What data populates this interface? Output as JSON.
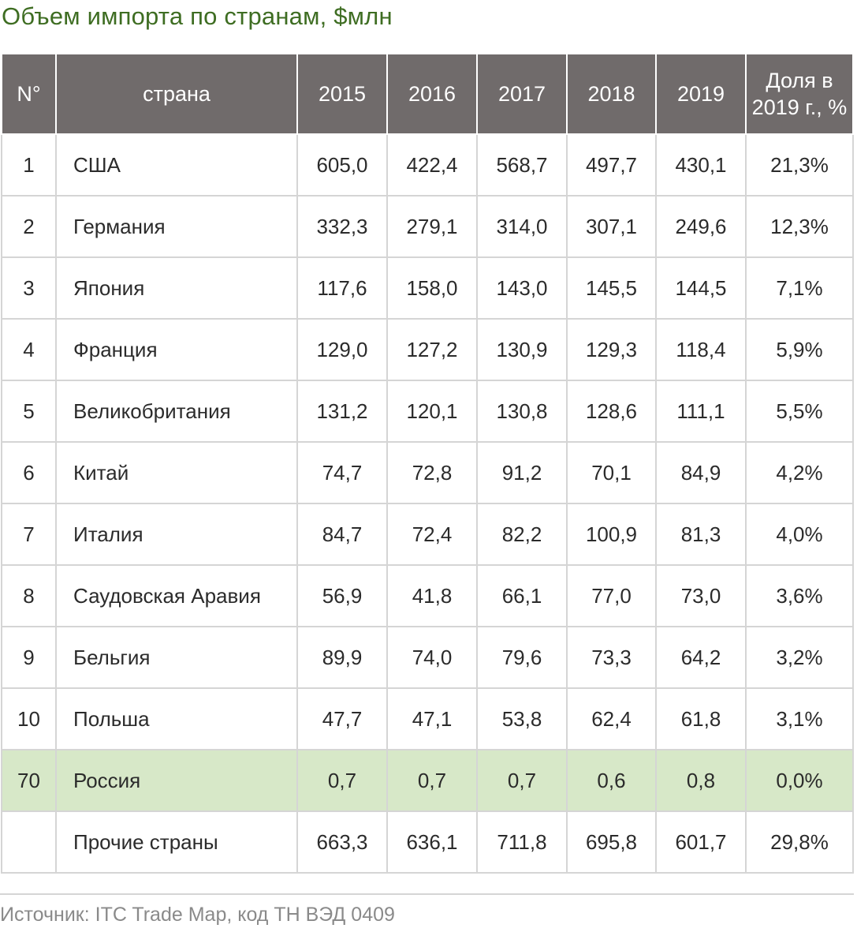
{
  "title": "Объем импорта по странам, $млн",
  "headers": {
    "num": "N°",
    "country": "страна",
    "y2015": "2015",
    "y2016": "2016",
    "y2017": "2017",
    "y2018": "2018",
    "y2019": "2019",
    "share_line1": "Доля в",
    "share_line2": "2019 г., %"
  },
  "rows": [
    {
      "num": "1",
      "country": "США",
      "y2015": "605,0",
      "y2016": "422,4",
      "y2017": "568,7",
      "y2018": "497,7",
      "y2019": "430,1",
      "share": "21,3%"
    },
    {
      "num": "2",
      "country": "Германия",
      "y2015": "332,3",
      "y2016": "279,1",
      "y2017": "314,0",
      "y2018": "307,1",
      "y2019": "249,6",
      "share": "12,3%"
    },
    {
      "num": "3",
      "country": "Япония",
      "y2015": "117,6",
      "y2016": "158,0",
      "y2017": "143,0",
      "y2018": "145,5",
      "y2019": "144,5",
      "share": "7,1%"
    },
    {
      "num": "4",
      "country": "Франция",
      "y2015": "129,0",
      "y2016": "127,2",
      "y2017": "130,9",
      "y2018": "129,3",
      "y2019": "118,4",
      "share": "5,9%"
    },
    {
      "num": "5",
      "country": "Великобритания",
      "y2015": "131,2",
      "y2016": "120,1",
      "y2017": "130,8",
      "y2018": "128,6",
      "y2019": "111,1",
      "share": "5,5%"
    },
    {
      "num": "6",
      "country": "Китай",
      "y2015": "74,7",
      "y2016": "72,8",
      "y2017": "91,2",
      "y2018": "70,1",
      "y2019": "84,9",
      "share": "4,2%"
    },
    {
      "num": "7",
      "country": "Италия",
      "y2015": "84,7",
      "y2016": "72,4",
      "y2017": "82,2",
      "y2018": "100,9",
      "y2019": "81,3",
      "share": "4,0%"
    },
    {
      "num": "8",
      "country": "Саудовская Аравия",
      "y2015": "56,9",
      "y2016": "41,8",
      "y2017": "66,1",
      "y2018": "77,0",
      "y2019": "73,0",
      "share": "3,6%"
    },
    {
      "num": "9",
      "country": "Бельгия",
      "y2015": "89,9",
      "y2016": "74,0",
      "y2017": "79,6",
      "y2018": "73,3",
      "y2019": "64,2",
      "share": "3,2%"
    },
    {
      "num": "10",
      "country": "Польша",
      "y2015": "47,7",
      "y2016": "47,1",
      "y2017": "53,8",
      "y2018": "62,4",
      "y2019": "61,8",
      "share": "3,1%"
    },
    {
      "num": "70",
      "country": "Россия",
      "y2015": "0,7",
      "y2016": "0,7",
      "y2017": "0,7",
      "y2018": "0,6",
      "y2019": "0,8",
      "share": "0,0%"
    },
    {
      "num": "",
      "country": "Прочие страны",
      "y2015": "663,3",
      "y2016": "636,1",
      "y2017": "711,8",
      "y2018": "695,8",
      "y2019": "601,7",
      "share": "29,8%"
    }
  ],
  "source": "Источник: ITC Trade Map, код ТН ВЭД 0409",
  "colors": {
    "title": "#3e6d22",
    "header_bg": "#706b6b",
    "highlight_row": "#d7e8c8"
  }
}
